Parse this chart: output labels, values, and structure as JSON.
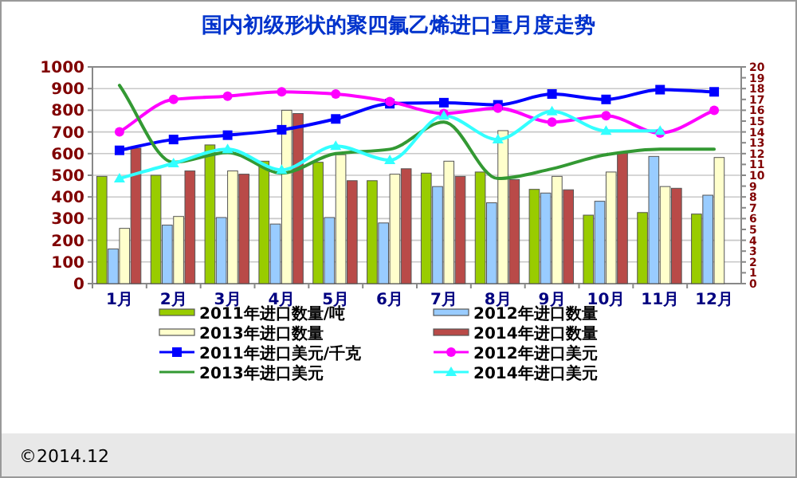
{
  "chart_data": {
    "type": "bar",
    "title": "国内初级形状的聚四氟乙烯进口量月度走势",
    "categories": [
      "1月",
      "2月",
      "3月",
      "4月",
      "5月",
      "6月",
      "7月",
      "8月",
      "9月",
      "10月",
      "11月",
      "12月"
    ],
    "series": [
      {
        "name": "2011年进口数量/吨",
        "color": "#99cc00",
        "values": [
          495,
          500,
          640,
          565,
          560,
          475,
          510,
          515,
          435,
          316,
          328,
          321
        ]
      },
      {
        "name": "2012年进口数量",
        "color": "#99ccff",
        "values": [
          160,
          270,
          305,
          275,
          305,
          280,
          448,
          373,
          418,
          380,
          587,
          408
        ]
      },
      {
        "name": "2013年进口数量",
        "color": "#ffffcc",
        "values": [
          255,
          310,
          520,
          800,
          595,
          505,
          565,
          706,
          495,
          515,
          448,
          582
        ]
      },
      {
        "name": "2014年进口数量",
        "color": "#b94a48",
        "values": [
          625,
          520,
          505,
          785,
          475,
          530,
          495,
          480,
          433,
          602,
          440,
          null
        ]
      },
      {
        "name": "2011年进口美元/千克",
        "color": "#0000ff",
        "type": "line",
        "axis": "y2",
        "marker": "square",
        "values": [
          12.3,
          13.3,
          13.7,
          14.2,
          15.2,
          16.6,
          16.7,
          16.5,
          17.5,
          17.0,
          17.9,
          17.7
        ]
      },
      {
        "name": "2012年进口美元",
        "color": "#ff00ff",
        "type": "line",
        "axis": "y2",
        "marker": "circle",
        "values": [
          14.0,
          17.0,
          17.3,
          17.7,
          17.5,
          16.8,
          15.7,
          16.2,
          14.9,
          15.5,
          13.9,
          16.0
        ]
      },
      {
        "name": "2013年进口美元",
        "color": "#339933",
        "type": "line",
        "axis": "y2",
        "marker": "none",
        "values": [
          18.3,
          11.2,
          12.1,
          10.2,
          12.0,
          12.4,
          14.9,
          9.7,
          10.6,
          11.9,
          12.4,
          12.4
        ]
      },
      {
        "name": "2014年进口美元",
        "color": "#33ffff",
        "type": "line",
        "axis": "y2",
        "marker": "triangle",
        "values": [
          9.7,
          11.1,
          12.4,
          10.5,
          12.7,
          11.4,
          15.5,
          13.3,
          15.9,
          14.1,
          14.1,
          null
        ]
      }
    ],
    "ylim": [
      0,
      1000
    ],
    "yticks": [
      0,
      100,
      200,
      300,
      400,
      500,
      600,
      700,
      800,
      900,
      1000
    ],
    "y2lim": [
      0,
      20
    ],
    "y2ticks": [
      0,
      1,
      2,
      3,
      4,
      5,
      6,
      7,
      8,
      9,
      10,
      11,
      12,
      13,
      14,
      15,
      16,
      17,
      18,
      19,
      20
    ],
    "grid": "y",
    "legend": "bottom",
    "annotations": [
      "©2014.12"
    ]
  }
}
